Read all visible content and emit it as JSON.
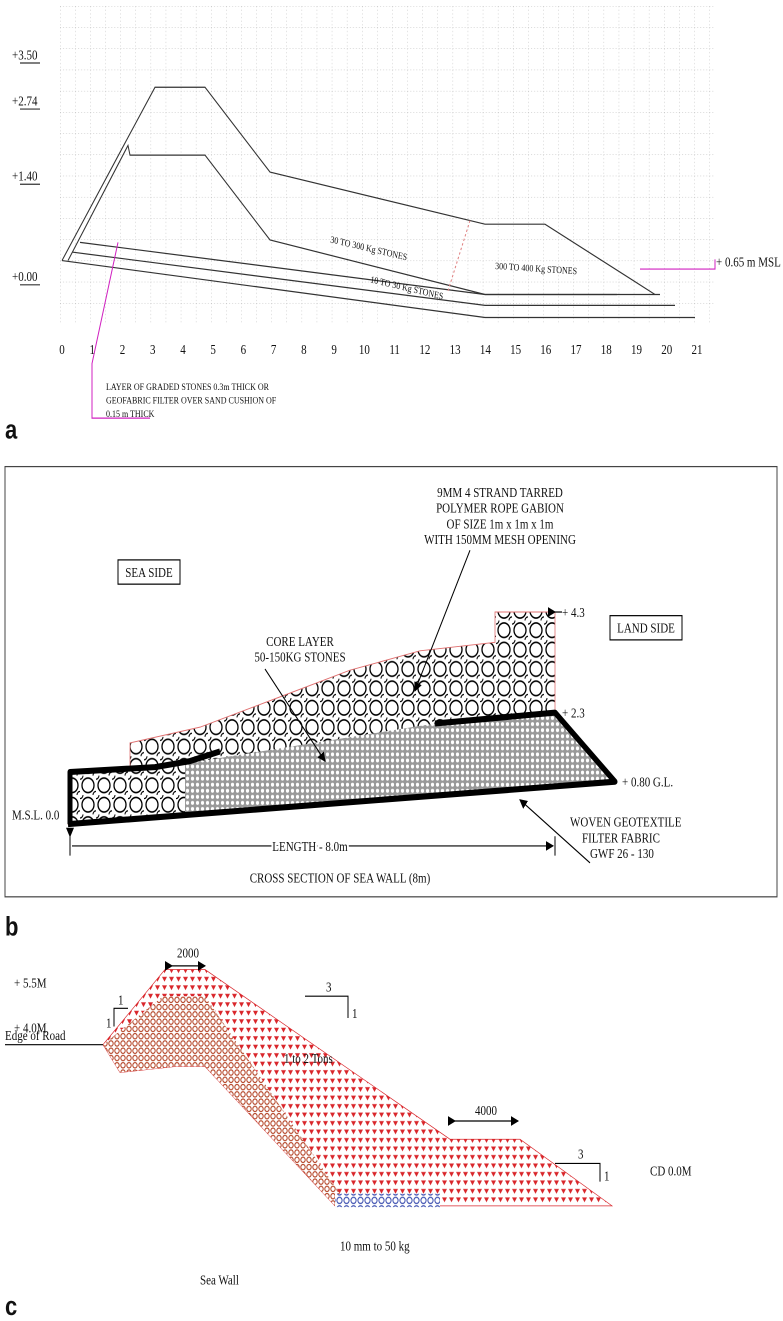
{
  "panel_a": {
    "label": "a",
    "y_levels": [
      "+3.50",
      "+2.74",
      "+1.40",
      "+0.00"
    ],
    "x_labels": [
      0,
      1,
      2,
      3,
      4,
      5,
      6,
      7,
      8,
      9,
      10,
      11,
      12,
      13,
      14,
      15,
      16,
      17,
      18,
      19,
      20,
      21
    ],
    "zones": [
      "30 TO 300 Kg STONES",
      "10 TO 30 Kg STONES",
      "300 TO 400 Kg STONES"
    ],
    "msl": "+ 0.65 m MSL",
    "note": [
      "LAYER OF GRADED STONES 0.3m THICK OR",
      "GEOFABRIC FILTER OVER SAND CUSHION OF",
      "0.15 m THICK"
    ]
  },
  "panel_b": {
    "label": "b",
    "sea_side": "SEA SIDE",
    "land_side": "LAND SIDE",
    "gabion_note": [
      "9MM 4 STRAND TARRED",
      "POLYMER ROPE GABION",
      "OF SIZE 1m x 1m x 1m",
      "WITH 150MM MESH OPENING"
    ],
    "core_note": [
      "CORE LAYER",
      "50-150KG STONES"
    ],
    "level_top": "+ 4.3",
    "level_mid": "+ 2.3",
    "level_gl": "+ 0.80 G.L.",
    "level_msl": "M.S.L. 0.0",
    "geotextile": [
      "WOVEN GEOTEXTILE",
      "FILTER FABRIC",
      "GWF 26 - 130"
    ],
    "length": "LENGTH - 8.0m",
    "caption": "CROSS SECTION OF SEA WALL (8m)"
  },
  "panel_c": {
    "label": "c",
    "crest_width": "2000",
    "level_high": "+ 5.5M",
    "level_low": "+ 4.0M",
    "slope_left": [
      "1",
      "1"
    ],
    "slope_mid": [
      "3",
      "1"
    ],
    "slope_right": [
      "3",
      "1"
    ],
    "edge_of_road": "Edge of Road",
    "armour": "1 to 2 Tons",
    "berm_width": "4000",
    "datum": "CD 0.0M",
    "sea_wall": "Sea Wall",
    "toe": "10 mm to 50 kg"
  }
}
